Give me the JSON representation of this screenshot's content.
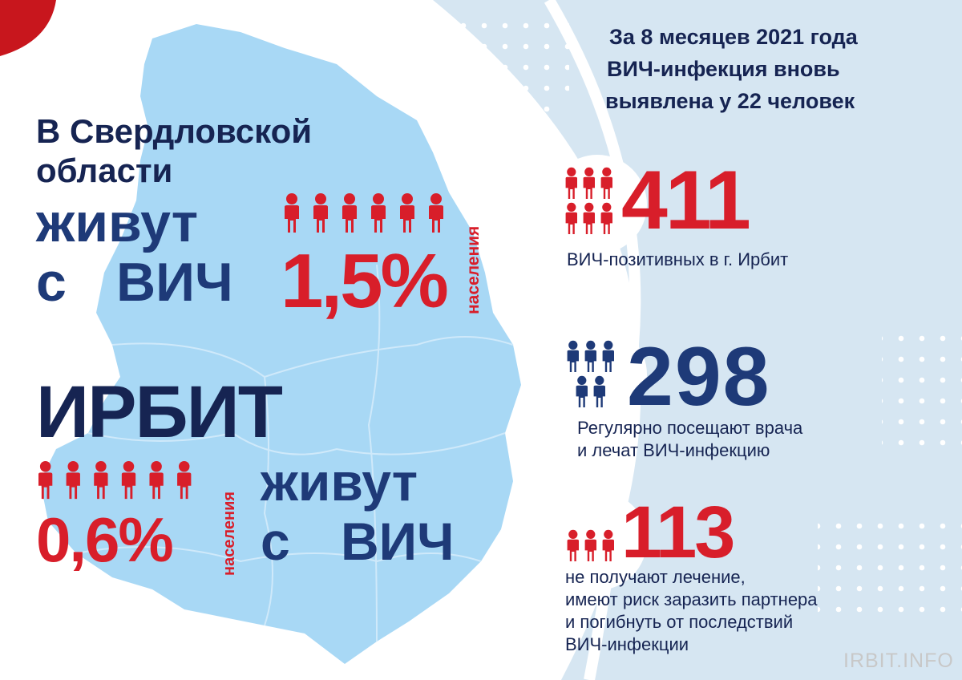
{
  "colors": {
    "navy": "#1e3a78",
    "dark_navy": "#162452",
    "red": "#d81e2a",
    "map_fill": "#a8d8f5",
    "right_panel": "#d6e6f2",
    "corner_accent": "#c8161d"
  },
  "icons": [
    "person-icon",
    "dot-pattern",
    "region-map"
  ],
  "left": {
    "region_line1": "В Свердловской",
    "region_line2": "области",
    "lives_word": "живут",
    "with_word": "с",
    "hiv_word": "ВИЧ",
    "region_percent": "1,5%",
    "population_word": "населения",
    "city_title": "ИРБИТ",
    "city_percent": "0,6%",
    "city_population_word": "населения",
    "city_lives_word": "живут",
    "city_with_word": "с",
    "city_hiv_word": "ВИЧ",
    "region_percent_value": 1.5,
    "city_percent_value": 0.6
  },
  "right": {
    "header_line1": "За 8 месяцев 2021 года",
    "header_line2": "ВИЧ-инфекция вновь",
    "header_line3": "выявлена у 22 человек",
    "stats": [
      {
        "number": "411",
        "desc_lines": [
          "ВИЧ-позитивных в г. Ирбит"
        ]
      },
      {
        "number": "298",
        "desc_lines": [
          "Регулярно посещают врача",
          "и лечат ВИЧ-инфекцию"
        ]
      },
      {
        "number": "113",
        "desc_lines": [
          "не получают лечение,",
          "имеют риск заразить партнера",
          "и погибнуть от последствий",
          "ВИЧ-инфекции"
        ]
      }
    ]
  },
  "watermark": "IRBIT.INFO"
}
